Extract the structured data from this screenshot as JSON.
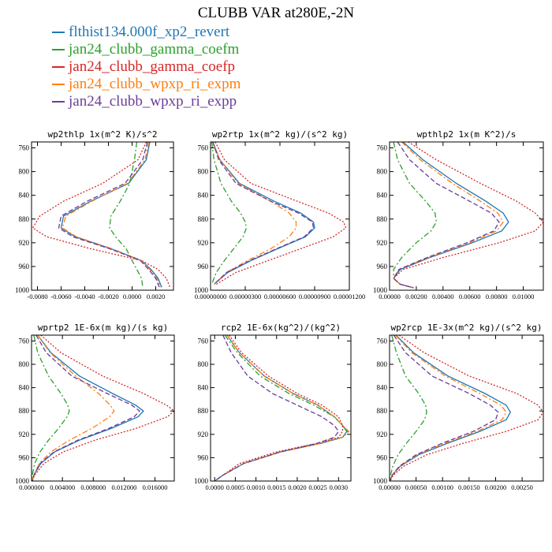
{
  "title": "CLUBB VAR at280E,-2N",
  "legend": [
    {
      "name": "flthist134.000f_xp2_revert",
      "color": "#1f77b4",
      "dash": "solid"
    },
    {
      "name": "jan24_clubb_gamma_coefm",
      "color": "#2ca02c",
      "dash": "dashdot"
    },
    {
      "name": "jan24_clubb_gamma_coefp",
      "color": "#d62728",
      "dash": "dot"
    },
    {
      "name": "jan24_clubb_wpxp_ri_expm",
      "color": "#ff7f0e",
      "dash": "dashdot"
    },
    {
      "name": "jan24_clubb_wpxp_ri_expp",
      "color": "#6a3d9a",
      "dash": "dash"
    }
  ],
  "chart_data": [
    {
      "type": "line",
      "title": "wp2thlp  1x(m^2 K)/s^2",
      "ylim": [
        1000,
        750
      ],
      "yticks": [
        760,
        800,
        840,
        880,
        920,
        960,
        1000
      ],
      "ytick_labels": [
        "760",
        "800",
        "840",
        "880",
        "920",
        "960",
        "1000"
      ],
      "xlim": [
        -0.0085,
        0.0035
      ],
      "xticks": [
        -0.008,
        -0.006,
        -0.004,
        -0.002,
        0,
        0.002
      ],
      "xtick_labels": [
        "-0.0080",
        "-0.0060",
        "-0.0040",
        "-0.0020",
        "0.0000",
        "0.0020"
      ],
      "y": [
        750,
        780,
        820,
        850,
        875,
        895,
        910,
        930,
        950,
        965,
        980,
        995
      ],
      "series": [
        {
          "values": [
            0.0015,
            0.0012,
            -0.0003,
            -0.0035,
            -0.0058,
            -0.006,
            -0.0048,
            -0.0018,
            0.0008,
            0.0016,
            0.0022,
            0.0025
          ]
        },
        {
          "values": [
            0.0004,
            0.0002,
            -0.0002,
            -0.001,
            -0.0018,
            -0.0019,
            -0.0014,
            -0.0005,
            0.0,
            0.0004,
            0.0008,
            0.0009
          ]
        },
        {
          "values": [
            0.0012,
            0.0005,
            -0.0025,
            -0.0058,
            -0.0078,
            -0.0084,
            -0.0072,
            -0.0035,
            0.0008,
            0.0022,
            0.0029,
            0.0032
          ]
        },
        {
          "values": [
            0.0014,
            0.0011,
            -0.0004,
            -0.0034,
            -0.0056,
            -0.0059,
            -0.0047,
            -0.0017,
            0.0008,
            0.0015,
            0.0021,
            0.0024
          ]
        },
        {
          "values": [
            0.0013,
            0.0009,
            -0.0006,
            -0.0038,
            -0.006,
            -0.0062,
            -0.005,
            -0.0019,
            0.0007,
            0.0014,
            0.002,
            0.0023
          ]
        }
      ]
    },
    {
      "type": "line",
      "title": "wp2rtp  1x(m^2 kg)/(s^2 kg)",
      "ylim": [
        1000,
        750
      ],
      "yticks": [
        760,
        800,
        840,
        880,
        920,
        960,
        1000
      ],
      "ytick_labels": [
        "760",
        "800",
        "840",
        "880",
        "920",
        "960",
        "1000"
      ],
      "xlim": [
        0,
        1.2e-05
      ],
      "xticks": [
        0,
        3e-06,
        6e-06,
        9e-06,
        1.2e-05
      ],
      "xtick_labels": [
        "0.00000000",
        "0.00000300",
        "0.00000600",
        "0.00000900",
        "0.00001200"
      ],
      "y": [
        750,
        780,
        820,
        850,
        870,
        885,
        895,
        910,
        930,
        950,
        970,
        990
      ],
      "series": [
        {
          "values": [
            2e-07,
            8e-07,
            2.5e-06,
            5.5e-06,
            7.8e-06,
            8.9e-06,
            9e-06,
            8.2e-06,
            5.8e-06,
            3.5e-06,
            1.5e-06,
            3e-07
          ]
        },
        {
          "values": [
            1e-07,
            3e-07,
            9e-07,
            1.8e-06,
            2.6e-06,
            3e-06,
            3.1e-06,
            2.8e-06,
            2e-06,
            1.2e-06,
            5e-07,
            1e-07
          ]
        },
        {
          "values": [
            4e-07,
            1.2e-06,
            3.5e-06,
            7.5e-06,
            1.02e-05,
            1.15e-05,
            1.17e-05,
            1.06e-05,
            7.8e-06,
            5e-06,
            2.2e-06,
            5e-07
          ]
        },
        {
          "values": [
            2e-07,
            8e-07,
            2.4e-06,
            5.2e-06,
            6.8e-06,
            7.4e-06,
            7.4e-06,
            6.8e-06,
            5.2e-06,
            3.2e-06,
            1.4e-06,
            3e-07
          ]
        },
        {
          "values": [
            2e-07,
            7e-07,
            2.2e-06,
            5.2e-06,
            7.6e-06,
            8.8e-06,
            8.9e-06,
            8.1e-06,
            5.7e-06,
            3.4e-06,
            1.4e-06,
            3e-07
          ]
        }
      ]
    },
    {
      "type": "line",
      "title": "wpthlp2  1x(m K^2)/s",
      "ylim": [
        1000,
        750
      ],
      "yticks": [
        760,
        800,
        840,
        880,
        920,
        960,
        1000
      ],
      "ytick_labels": [
        "760",
        "800",
        "840",
        "880",
        "920",
        "960",
        "1000"
      ],
      "xlim": [
        0,
        0.0115
      ],
      "xticks": [
        0,
        0.002,
        0.004,
        0.006,
        0.008,
        0.01
      ],
      "xtick_labels": [
        "0.00000",
        "0.00200",
        "0.00400",
        "0.00600",
        "0.00800",
        "0.01000"
      ],
      "y": [
        750,
        780,
        820,
        850,
        870,
        885,
        900,
        920,
        945,
        965,
        980,
        990,
        996
      ],
      "series": [
        {
          "values": [
            0.001,
            0.0025,
            0.005,
            0.0072,
            0.0085,
            0.0089,
            0.0084,
            0.0062,
            0.003,
            0.0008,
            0.0003,
            0.0008,
            0.0018
          ]
        },
        {
          "values": [
            0.0003,
            0.0006,
            0.0015,
            0.0027,
            0.0034,
            0.0035,
            0.0031,
            0.002,
            0.0009,
            0.0003,
            0.0003,
            0.0008,
            0.0018
          ]
        },
        {
          "values": [
            0.0014,
            0.0035,
            0.0068,
            0.0095,
            0.0109,
            0.0115,
            0.0109,
            0.0082,
            0.004,
            0.001,
            0.0003,
            0.0008,
            0.0018
          ]
        },
        {
          "values": [
            0.0009,
            0.0023,
            0.0047,
            0.0068,
            0.0081,
            0.0085,
            0.008,
            0.006,
            0.0029,
            0.0007,
            0.0003,
            0.0008,
            0.0018
          ]
        },
        {
          "values": [
            0.0006,
            0.0015,
            0.0035,
            0.006,
            0.0076,
            0.0082,
            0.0078,
            0.0058,
            0.0028,
            0.0007,
            0.0003,
            0.0008,
            0.0018
          ]
        }
      ]
    },
    {
      "type": "line",
      "title": "wprtp2  1E-6x(m kg)/(s kg)",
      "ylim": [
        1000,
        750
      ],
      "yticks": [
        760,
        800,
        840,
        880,
        920,
        960,
        1000
      ],
      "ytick_labels": [
        "760",
        "800",
        "840",
        "880",
        "920",
        "960",
        "1000"
      ],
      "xlim": [
        0,
        0.0185
      ],
      "xticks": [
        0,
        0.004,
        0.008,
        0.012,
        0.016
      ],
      "xtick_labels": [
        "0.000000",
        "0.004000",
        "0.008000",
        "0.012000",
        "0.016000"
      ],
      "y": [
        750,
        780,
        820,
        850,
        870,
        880,
        890,
        910,
        930,
        950,
        970,
        990,
        1000
      ],
      "series": [
        {
          "values": [
            0.0008,
            0.0025,
            0.0062,
            0.0105,
            0.0135,
            0.0145,
            0.0138,
            0.0103,
            0.0062,
            0.003,
            0.0012,
            0.0003,
            0.0001
          ]
        },
        {
          "values": [
            0.0003,
            0.0008,
            0.0022,
            0.0038,
            0.0047,
            0.0049,
            0.0046,
            0.0035,
            0.0022,
            0.0011,
            0.0004,
            0.0001,
            0.0
          ]
        },
        {
          "values": [
            0.0012,
            0.0038,
            0.0092,
            0.0145,
            0.0175,
            0.0185,
            0.0176,
            0.0135,
            0.0082,
            0.0041,
            0.0016,
            0.0004,
            0.0001
          ]
        },
        {
          "values": [
            0.0008,
            0.0024,
            0.0057,
            0.0087,
            0.0102,
            0.0107,
            0.0101,
            0.0078,
            0.0049,
            0.0025,
            0.001,
            0.0003,
            0.0001
          ]
        },
        {
          "values": [
            0.0006,
            0.0019,
            0.0052,
            0.0098,
            0.013,
            0.014,
            0.0133,
            0.01,
            0.006,
            0.0029,
            0.0011,
            0.0003,
            0.0001
          ]
        }
      ]
    },
    {
      "type": "line",
      "title": "rcp2  1E-6x(kg^2)/(kg^2)",
      "ylim": [
        1000,
        750
      ],
      "yticks": [
        760,
        800,
        840,
        880,
        920,
        960,
        1000
      ],
      "ytick_labels": [
        "760",
        "800",
        "840",
        "880",
        "920",
        "960",
        "1000"
      ],
      "xlim": [
        -0.0001,
        0.0033
      ],
      "xticks": [
        0,
        0.0005,
        0.001,
        0.0015,
        0.002,
        0.0025,
        0.003
      ],
      "xtick_labels": [
        "0.0000",
        "0.0005",
        "0.0010",
        "0.0015",
        "0.0020",
        "0.0025",
        "0.0030"
      ],
      "y": [
        750,
        780,
        820,
        850,
        870,
        890,
        905,
        915,
        925,
        935,
        950,
        970,
        990,
        1000
      ],
      "series": [
        {
          "values": [
            0.0003,
            0.0006,
            0.0012,
            0.0019,
            0.0025,
            0.0029,
            0.0031,
            0.0032,
            0.0031,
            0.0026,
            0.0016,
            0.0007,
            0.0002,
            0.0
          ]
        },
        {
          "values": [
            0.00025,
            0.00055,
            0.0011,
            0.0018,
            0.0024,
            0.0029,
            0.0031,
            0.00322,
            0.0031,
            0.00255,
            0.0016,
            0.0007,
            0.0002,
            0.0
          ]
        },
        {
          "values": [
            0.00035,
            0.00065,
            0.0013,
            0.002,
            0.0026,
            0.003,
            0.0031,
            0.0031,
            0.003,
            0.0025,
            0.0015,
            0.0006,
            0.0002,
            0.0
          ]
        },
        {
          "values": [
            0.0003,
            0.0006,
            0.0012,
            0.0019,
            0.0025,
            0.0029,
            0.0031,
            0.00325,
            0.0031,
            0.0026,
            0.0016,
            0.0007,
            0.0002,
            0.0
          ]
        },
        {
          "values": [
            0.0002,
            0.0004,
            0.0008,
            0.0014,
            0.002,
            0.0026,
            0.0029,
            0.003,
            0.0029,
            0.0025,
            0.0016,
            0.0007,
            0.0002,
            0.0
          ]
        }
      ]
    },
    {
      "type": "line",
      "title": "wp2rcp  1E-3x(m^2 kg)/(s^2 kg)",
      "ylim": [
        1000,
        750
      ],
      "yticks": [
        760,
        800,
        840,
        880,
        920,
        960,
        1000
      ],
      "ytick_labels": [
        "760",
        "800",
        "840",
        "880",
        "920",
        "960",
        "1000"
      ],
      "xlim": [
        0,
        0.0029
      ],
      "xticks": [
        0,
        0.0005,
        0.001,
        0.0015,
        0.002,
        0.0025
      ],
      "xtick_labels": [
        "0.00000",
        "0.00050",
        "0.00100",
        "0.00150",
        "0.00200",
        "0.00250"
      ],
      "y": [
        750,
        780,
        820,
        850,
        870,
        882,
        895,
        915,
        935,
        955,
        975,
        990,
        1000
      ],
      "series": [
        {
          "values": [
            0.00012,
            0.00045,
            0.0011,
            0.0018,
            0.0022,
            0.00228,
            0.0022,
            0.0017,
            0.0011,
            0.00055,
            0.0002,
            5e-05,
            1e-05
          ]
        },
        {
          "values": [
            4e-05,
            0.00013,
            0.0003,
            0.00055,
            0.00068,
            0.0007,
            0.00066,
            0.0005,
            0.00032,
            0.00016,
            6e-05,
            2e-05,
            0.0
          ]
        },
        {
          "values": [
            0.00018,
            0.00065,
            0.0015,
            0.0024,
            0.0028,
            0.0029,
            0.0028,
            0.0022,
            0.0014,
            0.0007,
            0.00026,
            7e-05,
            1e-05
          ]
        },
        {
          "values": [
            0.00011,
            0.00042,
            0.00105,
            0.0017,
            0.0021,
            0.0022,
            0.00212,
            0.00165,
            0.00105,
            0.00052,
            0.00019,
            5e-05,
            1e-05
          ]
        },
        {
          "values": [
            8e-05,
            0.0003,
            0.0008,
            0.0015,
            0.0019,
            0.00205,
            0.002,
            0.00158,
            0.001,
            0.0005,
            0.00018,
            5e-05,
            1e-05
          ]
        }
      ]
    }
  ]
}
